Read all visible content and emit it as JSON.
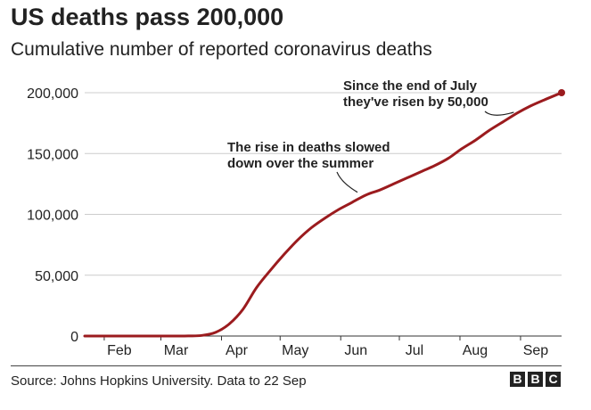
{
  "header": {
    "title": "US deaths pass 200,000",
    "subtitle": "Cumulative number of reported coronavirus deaths"
  },
  "footer": {
    "source": "Source: Johns Hopkins University. Data to 22 Sep",
    "logo_letters": [
      "B",
      "B",
      "C"
    ]
  },
  "chart_data": {
    "type": "line",
    "y_ticks": [
      0,
      50000,
      100000,
      150000,
      200000
    ],
    "y_tick_labels": [
      "0",
      "50,000",
      "100,000",
      "150,000",
      "200,000"
    ],
    "x_tick_labels": [
      "Feb",
      "Mar",
      "Apr",
      "May",
      "Jun",
      "Jul",
      "Aug",
      "Sep"
    ],
    "x_tick_dates": [
      "2020-02-01",
      "2020-03-01",
      "2020-04-01",
      "2020-05-01",
      "2020-06-01",
      "2020-07-01",
      "2020-08-01",
      "2020-09-01"
    ],
    "xlim": [
      "2020-01-22",
      "2020-09-22"
    ],
    "ylim": [
      0,
      200000
    ],
    "grid": true,
    "line_color": "#9b1b1e",
    "series": [
      {
        "x": [
          "2020-01-22",
          "2020-03-01",
          "2020-03-15",
          "2020-03-22",
          "2020-03-29",
          "2020-04-05",
          "2020-04-12",
          "2020-04-19",
          "2020-04-26",
          "2020-05-03",
          "2020-05-10",
          "2020-05-17",
          "2020-05-24",
          "2020-05-31",
          "2020-06-07",
          "2020-06-14",
          "2020-06-21",
          "2020-06-28",
          "2020-07-05",
          "2020-07-12",
          "2020-07-19",
          "2020-07-26",
          "2020-08-02",
          "2020-08-09",
          "2020-08-16",
          "2020-08-23",
          "2020-08-30",
          "2020-09-06",
          "2020-09-13",
          "2020-09-22"
        ],
        "y": [
          0,
          1,
          70,
          500,
          3000,
          10000,
          22000,
          40000,
          54000,
          67000,
          79000,
          89000,
          97000,
          104000,
          110000,
          116000,
          120000,
          125000,
          130000,
          135000,
          140000,
          146000,
          154000,
          161000,
          169000,
          176000,
          183000,
          189000,
          194000,
          200000
        ]
      }
    ],
    "annotations": [
      {
        "lines": [
          "The rise in deaths slowed",
          "down over the summer"
        ],
        "x": "2020-06-10",
        "y": 116000
      },
      {
        "lines": [
          "Since the end of July",
          "they've risen by 50,000"
        ],
        "x": "2020-08-29",
        "y": 181000
      }
    ]
  }
}
